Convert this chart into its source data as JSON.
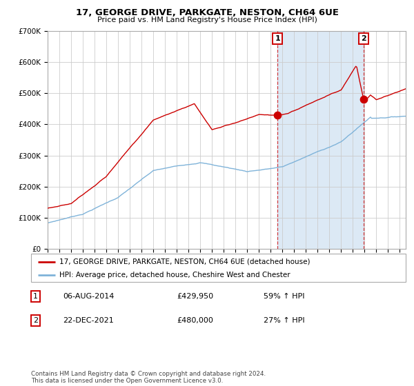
{
  "title": "17, GEORGE DRIVE, PARKGATE, NESTON, CH64 6UE",
  "subtitle": "Price paid vs. HM Land Registry's House Price Index (HPI)",
  "red_label": "17, GEORGE DRIVE, PARKGATE, NESTON, CH64 6UE (detached house)",
  "blue_label": "HPI: Average price, detached house, Cheshire West and Chester",
  "purchase1_date": "06-AUG-2014",
  "purchase1_price": 429950,
  "purchase1_hpi": "59% ↑ HPI",
  "purchase2_date": "22-DEC-2021",
  "purchase2_price": 480000,
  "purchase2_hpi": "27% ↑ HPI",
  "footer": "Contains HM Land Registry data © Crown copyright and database right 2024.\nThis data is licensed under the Open Government Licence v3.0.",
  "bg_highlight_color": "#dce9f5",
  "red_color": "#cc0000",
  "blue_color": "#7fb3d9",
  "grid_color": "#cccccc",
  "spine_color": "#aaaaaa",
  "ylim": [
    0,
    700000
  ],
  "yticks": [
    0,
    100000,
    200000,
    300000,
    400000,
    500000,
    600000,
    700000
  ],
  "ylabels": [
    "£0",
    "£100K",
    "£200K",
    "£300K",
    "£400K",
    "£500K",
    "£600K",
    "£700K"
  ]
}
